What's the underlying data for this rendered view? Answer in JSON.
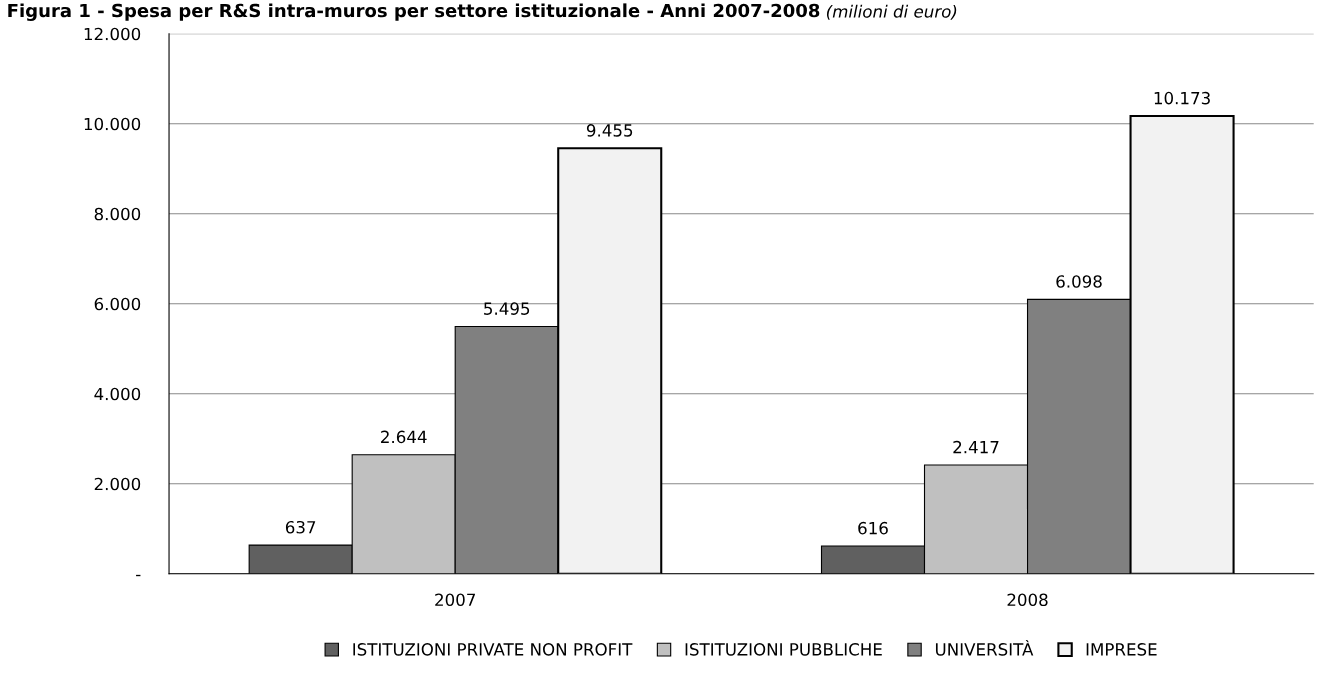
{
  "chart_data": {
    "type": "bar",
    "title": "Figura 1 - Spesa per R&S intra-muros per settore istituzionale - Anni 2007-2008",
    "subtitle": "(milioni di euro)",
    "categories": [
      "2007",
      "2008"
    ],
    "series": [
      {
        "name": "ISTITUZIONI PRIVATE NON PROFIT",
        "color": "#606060",
        "values": [
          637,
          616
        ],
        "value_labels": [
          "637",
          "616"
        ]
      },
      {
        "name": "ISTITUZIONI PUBBLICHE",
        "color": "#c0c0c0",
        "values": [
          2644,
          2417
        ],
        "value_labels": [
          "2.644",
          "2.417"
        ]
      },
      {
        "name": "UNIVERSITÀ",
        "color": "#808080",
        "values": [
          5495,
          6098
        ],
        "value_labels": [
          "5.495",
          "6.098"
        ]
      },
      {
        "name": "IMPRESE",
        "color": "#f2f2f2",
        "values": [
          9455,
          10173
        ],
        "value_labels": [
          "9.455",
          "10.173"
        ]
      }
    ],
    "ylim": [
      0,
      12000
    ],
    "yticks": [
      {
        "value": 0,
        "label": "-"
      },
      {
        "value": 2000,
        "label": "2.000"
      },
      {
        "value": 4000,
        "label": "4.000"
      },
      {
        "value": 6000,
        "label": "6.000"
      },
      {
        "value": 8000,
        "label": "8.000"
      },
      {
        "value": 10000,
        "label": "10.000"
      },
      {
        "value": 12000,
        "label": "12.000"
      }
    ],
    "grid": "y",
    "legend": "bottom"
  }
}
